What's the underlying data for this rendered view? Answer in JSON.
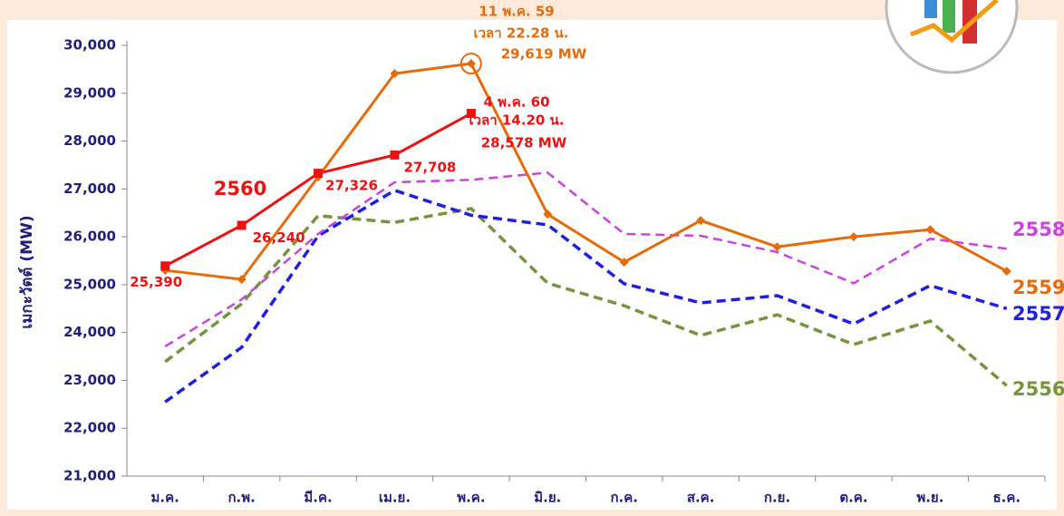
{
  "chart_data": {
    "type": "line",
    "y_label": "เมกะวัตต์ (MW)",
    "categories": [
      "ม.ค.",
      "ก.พ.",
      "มี.ค.",
      "เม.ย.",
      "พ.ค.",
      "มิ.ย.",
      "ก.ค.",
      "ส.ค.",
      "ก.ย.",
      "ต.ค.",
      "พ.ย.",
      "ธ.ค."
    ],
    "ylim": [
      21000,
      30000
    ],
    "yticks": [
      {
        "value": 21000,
        "label": "21,000"
      },
      {
        "value": 22000,
        "label": "22,000"
      },
      {
        "value": 23000,
        "label": "23,000"
      },
      {
        "value": 24000,
        "label": "24,000"
      },
      {
        "value": 25000,
        "label": "25,000"
      },
      {
        "value": 26000,
        "label": "26,000"
      },
      {
        "value": 27000,
        "label": "27,000"
      },
      {
        "value": 28000,
        "label": "28,000"
      },
      {
        "value": 29000,
        "label": "29,000"
      },
      {
        "value": 30000,
        "label": "30,000"
      }
    ],
    "series": [
      {
        "name": "2556",
        "color": "#77933c",
        "dashed": true,
        "values": [
          23390,
          24600,
          26440,
          26300,
          26590,
          25030,
          24560,
          23940,
          24370,
          23750,
          24240,
          22890
        ]
      },
      {
        "name": "2557",
        "color": "#1f1fe0",
        "dashed": true,
        "values": [
          22550,
          23690,
          26020,
          26970,
          26450,
          26250,
          25020,
          24620,
          24770,
          24180,
          24980,
          24500
        ]
      },
      {
        "name": "2558",
        "color": "#cc44dd",
        "dashed": true,
        "values": [
          23710,
          24690,
          26060,
          27140,
          27190,
          27340,
          26060,
          26020,
          25680,
          25030,
          25960,
          25750
        ]
      },
      {
        "name": "2559",
        "color": "#e46c0a",
        "marker": "diamond",
        "values": [
          25300,
          25110,
          27250,
          29410,
          29619,
          26470,
          25470,
          26340,
          25790,
          26000,
          26150,
          25280
        ]
      },
      {
        "name": "2560",
        "color": "#ee1111",
        "marker": "square",
        "values": [
          25390,
          26240,
          27326,
          27708,
          28578,
          null,
          null,
          null,
          null,
          null,
          null,
          null
        ],
        "value_labels": [
          "25,390",
          "26,240",
          "27,326",
          "27,708",
          null,
          null,
          null,
          null,
          null,
          null,
          null,
          null
        ]
      }
    ],
    "annotations": [
      {
        "color": "#e46c0a",
        "lines": [
          "11 พ.ค. 59",
          "เวลา 22.28 น.",
          "29,619  MW"
        ]
      },
      {
        "color": "#ee1111",
        "lines": [
          "4 พ.ค. 60",
          "เวลา 14.20 น.",
          "28,578 MW"
        ]
      }
    ]
  }
}
